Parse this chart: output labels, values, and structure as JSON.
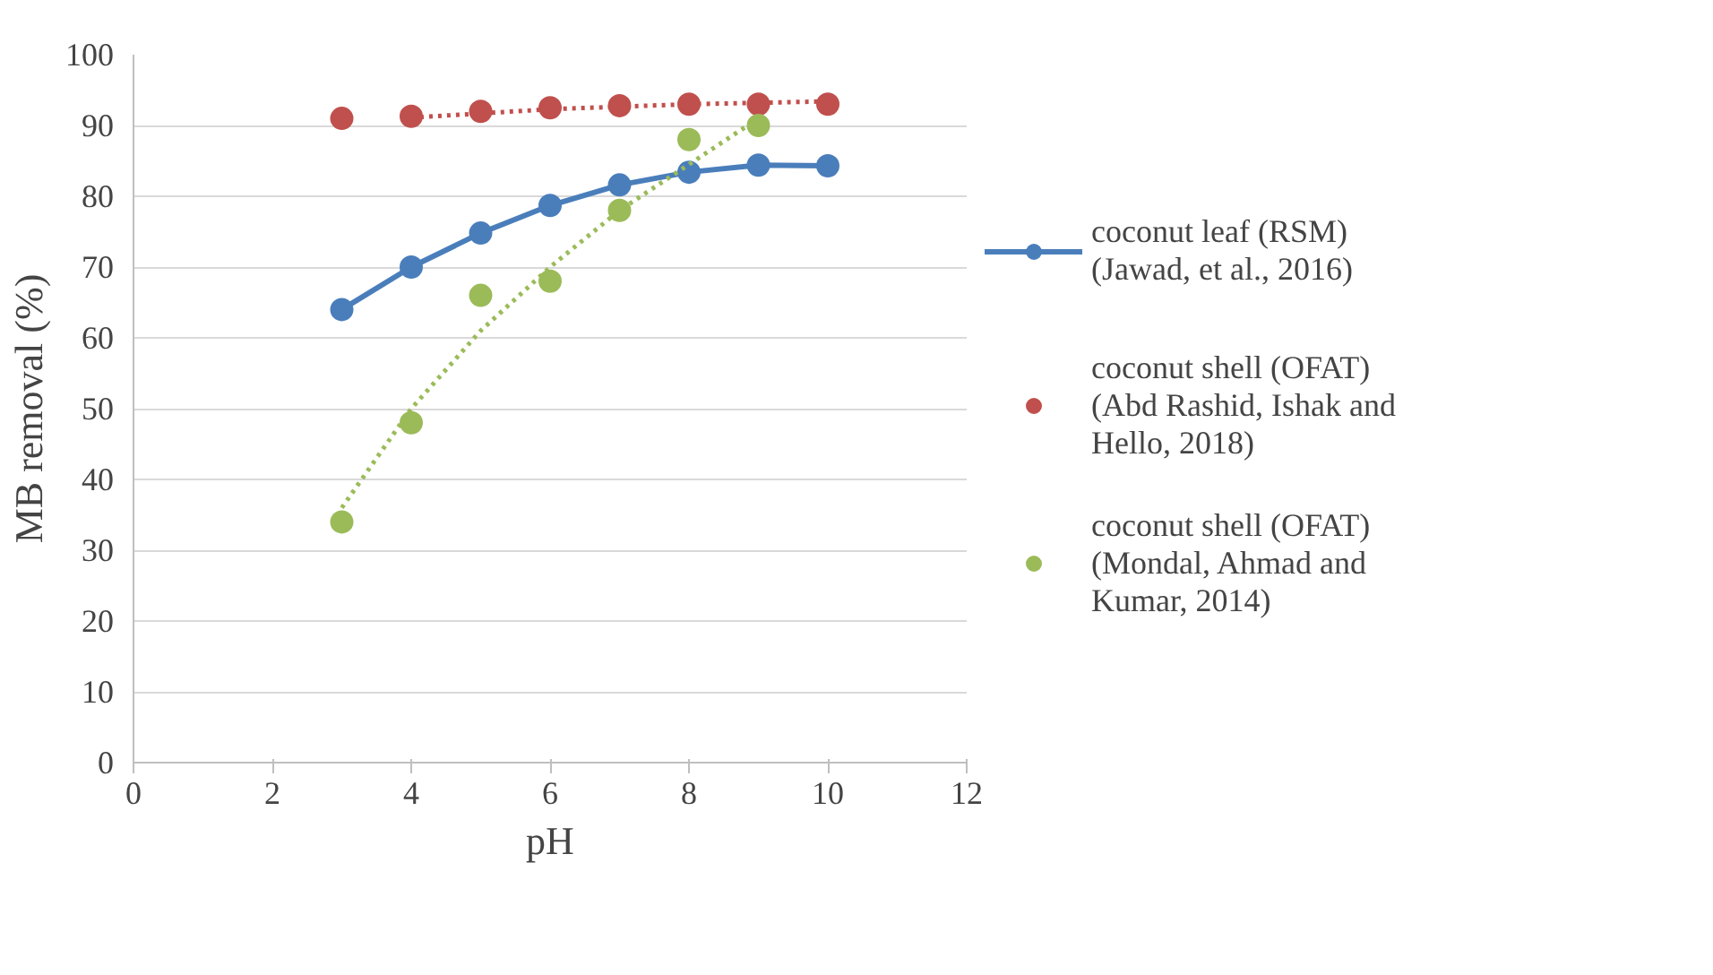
{
  "chart_data": {
    "type": "line",
    "xlabel": "pH",
    "ylabel": "MB removal (%)",
    "xlim": [
      0,
      12
    ],
    "xticks": [
      0,
      2,
      4,
      6,
      8,
      10,
      12
    ],
    "ylim": [
      0,
      100
    ],
    "yticks": [
      0,
      10,
      20,
      30,
      40,
      50,
      60,
      70,
      80,
      90,
      100
    ],
    "grid": "y",
    "legend": "right",
    "marker": "circle",
    "series": [
      {
        "name": "coconut leaf (RSM) (Jawad, et al., 2016)",
        "color": "#4a7ebb",
        "x": [
          3,
          4,
          5,
          6,
          7,
          8,
          9,
          10
        ],
        "values": [
          64,
          70,
          74.8,
          78.7,
          81.6,
          83.4,
          84.4,
          84.3
        ]
      },
      {
        "name": "coconut shell (OFAT) (Abd Rashid, Ishak and Hello, 2018)",
        "color": "#c0504d",
        "type": "scatter",
        "x": [
          3,
          4,
          5,
          6,
          7,
          8,
          9,
          10
        ],
        "values": [
          91,
          91.3,
          92,
          92.5,
          92.8,
          93,
          93,
          93
        ]
      },
      {
        "name": "coconut shell (OFAT) (Mondal, Ahmad and Kumar, 2014)",
        "color": "#9bbb59",
        "type": "scatter",
        "x": [
          3,
          4,
          5,
          6,
          7,
          8,
          9
        ],
        "values": [
          34,
          48,
          66,
          68,
          78,
          88,
          90
        ]
      },
      {
        "color": "#c0504d",
        "type": "line",
        "line_style": "dotted",
        "marker": "none",
        "x": [
          4,
          6,
          8,
          10
        ],
        "values": [
          91.1,
          92.3,
          93,
          93.4
        ]
      },
      {
        "color": "#9bbb59",
        "type": "line",
        "line_style": "dotted",
        "marker": "none",
        "x": [
          3,
          4,
          5,
          6,
          7,
          8,
          9
        ],
        "values": [
          36,
          50,
          61,
          70,
          78,
          84.5,
          91
        ]
      }
    ]
  }
}
